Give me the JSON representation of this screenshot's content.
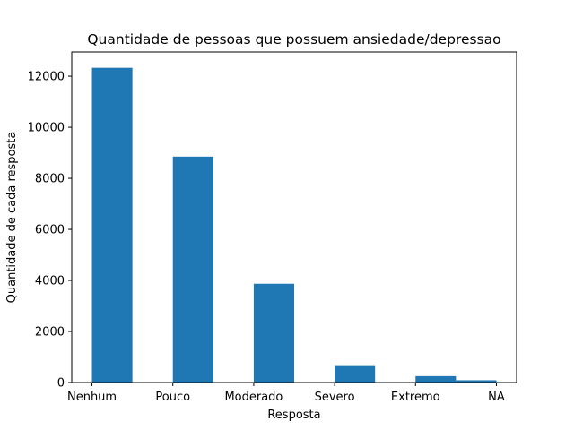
{
  "chart_data": {
    "type": "bar",
    "title": "Quantidade de pessoas que possuem ansiedade/depressao",
    "xlabel": "Resposta",
    "ylabel": "Quantidade de cada resposta",
    "categories": [
      "Nenhum",
      "Pouco",
      "Moderado",
      "Severo",
      "Extremo",
      "NA"
    ],
    "values": [
      12330,
      8850,
      3870,
      680,
      250,
      90
    ],
    "ylim": [
      0,
      12950
    ],
    "yticks": [
      0,
      2000,
      4000,
      6000,
      8000,
      10000,
      12000
    ],
    "bar_color": "#1f77b4",
    "grid": false
  }
}
